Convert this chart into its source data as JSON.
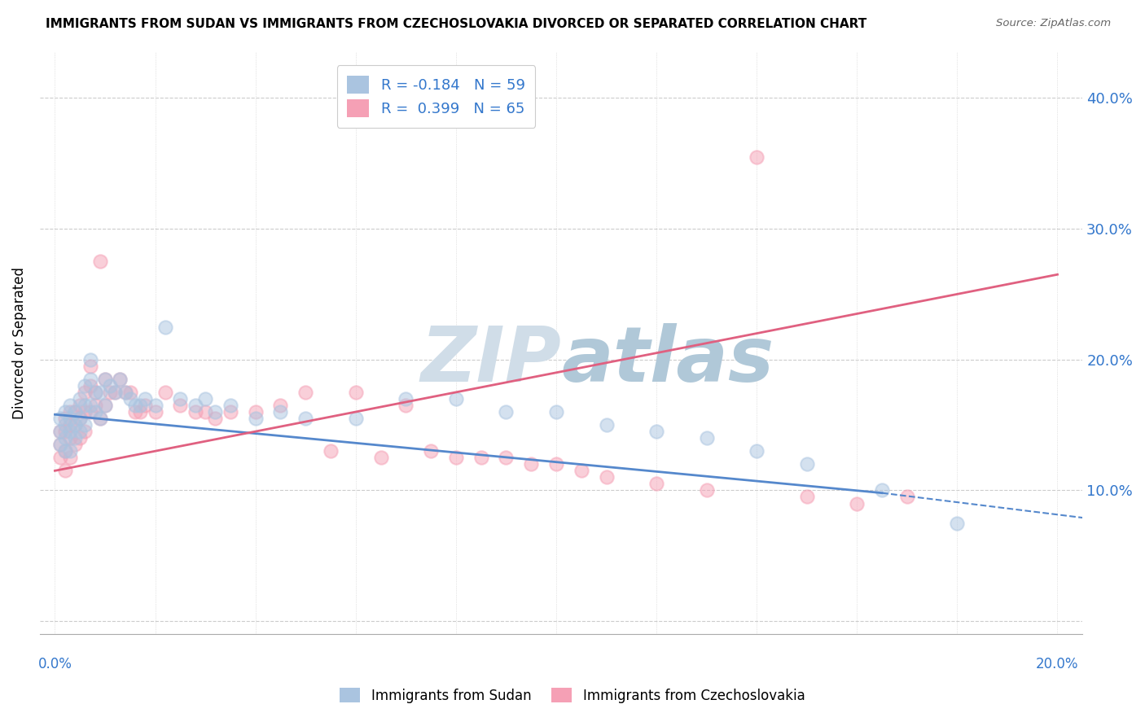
{
  "title": "IMMIGRANTS FROM SUDAN VS IMMIGRANTS FROM CZECHOSLOVAKIA DIVORCED OR SEPARATED CORRELATION CHART",
  "source": "Source: ZipAtlas.com",
  "ylabel": "Divorced or Separated",
  "xlim": [
    0.0,
    0.2
  ],
  "ylim": [
    -0.01,
    0.43
  ],
  "yticks": [
    0.0,
    0.1,
    0.2,
    0.3,
    0.4
  ],
  "sudan_color": "#aac4e0",
  "czech_color": "#f5a0b5",
  "sudan_line_color": "#5588cc",
  "czech_line_color": "#e06080",
  "sudan_R": -0.184,
  "sudan_N": 59,
  "czech_R": 0.399,
  "czech_N": 65,
  "legend_R_color": "#3377cc",
  "watermark_color": "#d0dde8",
  "background_color": "#ffffff",
  "sudan_x": [
    0.001,
    0.001,
    0.001,
    0.002,
    0.002,
    0.002,
    0.002,
    0.003,
    0.003,
    0.003,
    0.003,
    0.004,
    0.004,
    0.004,
    0.005,
    0.005,
    0.005,
    0.006,
    0.006,
    0.006,
    0.007,
    0.007,
    0.007,
    0.008,
    0.008,
    0.009,
    0.009,
    0.01,
    0.01,
    0.011,
    0.012,
    0.013,
    0.014,
    0.015,
    0.016,
    0.017,
    0.018,
    0.02,
    0.022,
    0.025,
    0.028,
    0.03,
    0.032,
    0.035,
    0.04,
    0.045,
    0.05,
    0.06,
    0.07,
    0.08,
    0.09,
    0.1,
    0.11,
    0.12,
    0.13,
    0.14,
    0.15,
    0.165,
    0.18
  ],
  "sudan_y": [
    0.155,
    0.145,
    0.135,
    0.16,
    0.15,
    0.14,
    0.13,
    0.165,
    0.155,
    0.145,
    0.13,
    0.16,
    0.15,
    0.14,
    0.17,
    0.155,
    0.145,
    0.18,
    0.165,
    0.15,
    0.2,
    0.185,
    0.165,
    0.175,
    0.16,
    0.175,
    0.155,
    0.185,
    0.165,
    0.18,
    0.175,
    0.185,
    0.175,
    0.17,
    0.165,
    0.165,
    0.17,
    0.165,
    0.225,
    0.17,
    0.165,
    0.17,
    0.16,
    0.165,
    0.155,
    0.16,
    0.155,
    0.155,
    0.17,
    0.17,
    0.16,
    0.16,
    0.15,
    0.145,
    0.14,
    0.13,
    0.12,
    0.1,
    0.075
  ],
  "czech_x": [
    0.001,
    0.001,
    0.001,
    0.002,
    0.002,
    0.002,
    0.002,
    0.003,
    0.003,
    0.003,
    0.003,
    0.004,
    0.004,
    0.004,
    0.005,
    0.005,
    0.005,
    0.006,
    0.006,
    0.006,
    0.007,
    0.007,
    0.007,
    0.008,
    0.008,
    0.009,
    0.009,
    0.01,
    0.01,
    0.011,
    0.012,
    0.013,
    0.014,
    0.015,
    0.016,
    0.017,
    0.018,
    0.02,
    0.022,
    0.025,
    0.028,
    0.03,
    0.032,
    0.035,
    0.04,
    0.045,
    0.05,
    0.06,
    0.07,
    0.08,
    0.09,
    0.1,
    0.11,
    0.12,
    0.13,
    0.14,
    0.15,
    0.16,
    0.17,
    0.055,
    0.065,
    0.075,
    0.085,
    0.095,
    0.105
  ],
  "czech_y": [
    0.145,
    0.135,
    0.125,
    0.155,
    0.145,
    0.13,
    0.115,
    0.16,
    0.15,
    0.14,
    0.125,
    0.16,
    0.15,
    0.135,
    0.165,
    0.155,
    0.14,
    0.175,
    0.16,
    0.145,
    0.195,
    0.18,
    0.16,
    0.175,
    0.165,
    0.275,
    0.155,
    0.185,
    0.165,
    0.175,
    0.175,
    0.185,
    0.175,
    0.175,
    0.16,
    0.16,
    0.165,
    0.16,
    0.175,
    0.165,
    0.16,
    0.16,
    0.155,
    0.16,
    0.16,
    0.165,
    0.175,
    0.175,
    0.165,
    0.125,
    0.125,
    0.12,
    0.11,
    0.105,
    0.1,
    0.355,
    0.095,
    0.09,
    0.095,
    0.13,
    0.125,
    0.13,
    0.125,
    0.12,
    0.115
  ]
}
